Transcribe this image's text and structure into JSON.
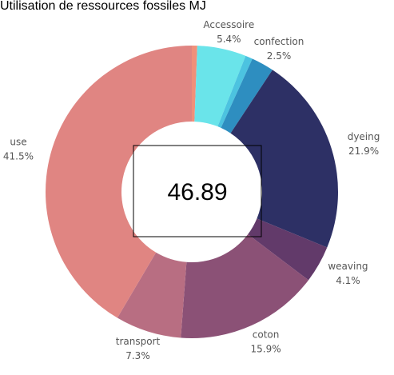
{
  "chart_data": {
    "type": "donut",
    "title": "Utilisation de ressources fossiles MJ",
    "center_value": 46.89,
    "categories": [
      null,
      "Accessoire",
      null,
      "confection",
      "dyeing",
      "weaving",
      "coton",
      "transport",
      "use"
    ],
    "values": [
      0.6,
      5.4,
      0.8,
      2.5,
      21.9,
      4.1,
      15.9,
      7.3,
      41.5
    ],
    "value_labels": [
      null,
      "5.4%",
      null,
      "2.5%",
      "21.9%",
      "4.1%",
      "15.9%",
      "7.3%",
      "41.5%"
    ],
    "colors": [
      "#f0907a",
      "#6ae4ea",
      "#4cc3e0",
      "#2e8ec0",
      "#2d3065",
      "#623a6a",
      "#8b5176",
      "#b86e82",
      "#e08582"
    ]
  }
}
